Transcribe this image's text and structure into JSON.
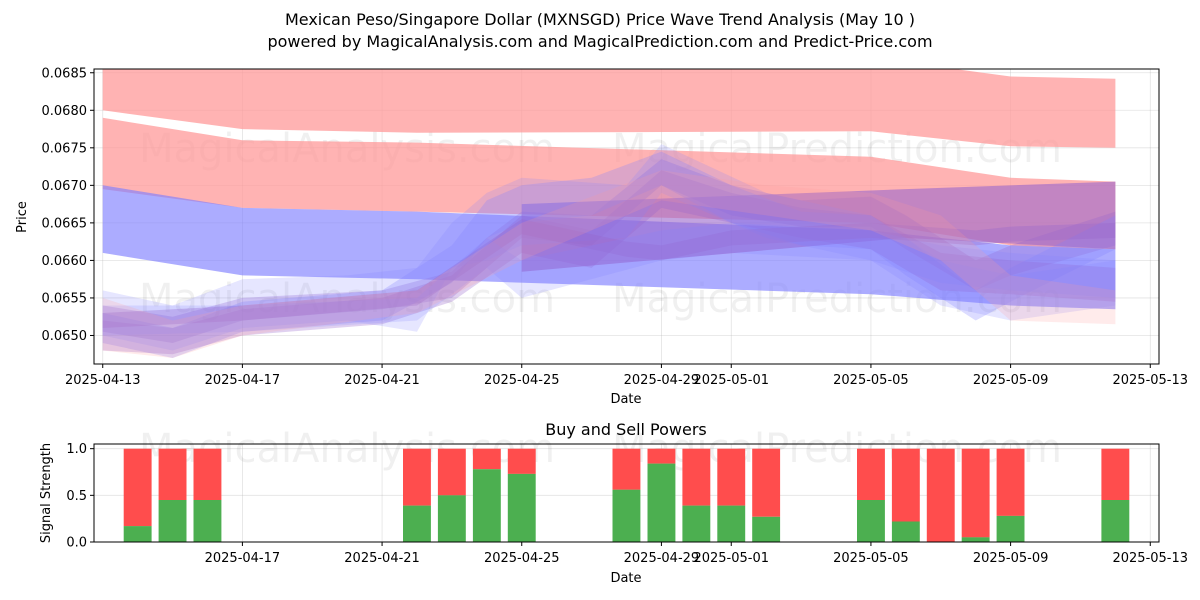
{
  "title_line1": "Mexican Peso/Singapore Dollar (MXNSGD) Price Wave Trend Analysis (May 10 )",
  "title_line2": "powered by MagicalAnalysis.com and MagicalPrediction.com and Predict-Price.com",
  "watermarks": [
    "MagicalAnalysis.com",
    "MagicalPrediction.com"
  ],
  "colors": {
    "sell": "#ff4d4d",
    "buy": "#4caf50",
    "red_band": "#ff9999",
    "blue_band": "#8080ff",
    "purple_band": "#9966cc"
  },
  "chart_data": [
    {
      "type": "area",
      "title": "",
      "xlabel": "Date",
      "ylabel": "Price",
      "xlim": [
        "2025-04-12T18:00",
        "2025-05-13T06:00"
      ],
      "ylim": [
        0.06462,
        0.06855
      ],
      "x_ticks": [
        "2025-04-13",
        "2025-04-17",
        "2025-04-21",
        "2025-04-25",
        "2025-04-29",
        "2025-05-01",
        "2025-05-05",
        "2025-05-09",
        "2025-05-13"
      ],
      "y_ticks": [
        0.065,
        0.0655,
        0.066,
        0.0665,
        0.067,
        0.0675,
        0.068,
        0.0685
      ],
      "y_tick_labels": [
        "0.0650",
        "0.0655",
        "0.0660",
        "0.0665",
        "0.0670",
        "0.0675",
        "0.0680",
        "0.0685"
      ],
      "grid": true,
      "series": [
        {
          "color": "red",
          "opacity": 0.75,
          "x": [
            "2025-04-13",
            "2025-04-17",
            "2025-04-22",
            "2025-05-05",
            "2025-05-09",
            "2025-05-12"
          ],
          "upper": [
            0.0687,
            0.0686,
            0.06855,
            0.0687,
            0.06845,
            0.06842
          ],
          "lower": [
            0.068,
            0.06775,
            0.0677,
            0.06772,
            0.06752,
            0.0675
          ]
        },
        {
          "color": "red",
          "opacity": 0.75,
          "x": [
            "2025-04-13",
            "2025-04-17",
            "2025-04-22",
            "2025-05-05",
            "2025-05-09",
            "2025-05-12"
          ],
          "upper": [
            0.0679,
            0.0676,
            0.06757,
            0.06738,
            0.0671,
            0.06705
          ],
          "lower": [
            0.06695,
            0.0667,
            0.06665,
            0.0665,
            0.0662,
            0.06615
          ]
        },
        {
          "color": "blue",
          "opacity": 0.65,
          "x": [
            "2025-04-13",
            "2025-04-17",
            "2025-04-22",
            "2025-05-05",
            "2025-05-09",
            "2025-05-12"
          ],
          "upper": [
            0.067,
            0.0667,
            0.06665,
            0.0664,
            0.0662,
            0.06615
          ],
          "lower": [
            0.0661,
            0.0658,
            0.06575,
            0.06555,
            0.0654,
            0.06535
          ]
        },
        {
          "color": "purple",
          "opacity": 0.6,
          "x": [
            "2025-04-25",
            "2025-05-06",
            "2025-05-12"
          ],
          "upper": [
            0.06675,
            0.06695,
            0.06705
          ],
          "lower": [
            0.06585,
            0.0663,
            0.06615
          ]
        },
        {
          "color": "purple",
          "opacity": 0.3,
          "x": [
            "2025-04-13",
            "2025-04-15",
            "2025-04-17",
            "2025-04-21",
            "2025-04-23",
            "2025-04-24",
            "2025-04-25",
            "2025-04-27",
            "2025-04-29",
            "2025-05-01",
            "2025-05-03",
            "2025-05-05",
            "2025-05-06",
            "2025-05-08",
            "2025-05-09",
            "2025-05-12"
          ],
          "upper": [
            0.0654,
            0.06525,
            0.0655,
            0.0656,
            0.06585,
            0.0663,
            0.06665,
            0.0666,
            0.06735,
            0.067,
            0.0668,
            0.06685,
            0.0666,
            0.066,
            0.0662,
            0.06665
          ],
          "lower": [
            0.06505,
            0.0649,
            0.0652,
            0.06535,
            0.0655,
            0.0659,
            0.0663,
            0.0662,
            0.067,
            0.0666,
            0.06645,
            0.06645,
            0.06615,
            0.0656,
            0.0658,
            0.0662
          ]
        },
        {
          "color": "blue",
          "opacity": 0.28,
          "x": [
            "2025-04-13",
            "2025-04-15",
            "2025-04-17",
            "2025-04-21",
            "2025-04-23",
            "2025-04-24",
            "2025-04-25",
            "2025-04-27",
            "2025-04-29",
            "2025-05-01",
            "2025-05-03",
            "2025-05-05",
            "2025-05-06",
            "2025-05-08",
            "2025-05-09",
            "2025-05-12"
          ],
          "upper": [
            0.0653,
            0.0651,
            0.06545,
            0.0656,
            0.0662,
            0.0668,
            0.067,
            0.0671,
            0.06745,
            0.067,
            0.06665,
            0.0666,
            0.0663,
            0.0656,
            0.0659,
            0.0666
          ],
          "lower": [
            0.0649,
            0.0647,
            0.06505,
            0.0652,
            0.0657,
            0.0663,
            0.0665,
            0.0666,
            0.067,
            0.0665,
            0.0662,
            0.06615,
            0.0658,
            0.0652,
            0.06545,
            0.06615
          ]
        },
        {
          "color": "purple",
          "opacity": 0.3,
          "x": [
            "2025-04-13",
            "2025-04-15",
            "2025-04-17",
            "2025-04-21",
            "2025-04-23",
            "2025-04-25",
            "2025-04-27",
            "2025-04-29",
            "2025-05-01",
            "2025-05-03",
            "2025-05-05",
            "2025-05-07",
            "2025-05-09",
            "2025-05-12"
          ],
          "upper": [
            0.0652,
            0.0651,
            0.06535,
            0.0655,
            0.0658,
            0.0666,
            0.0664,
            0.0672,
            0.0669,
            0.0667,
            0.0666,
            0.0661,
            0.066,
            0.0659
          ],
          "lower": [
            0.0648,
            0.06475,
            0.065,
            0.06515,
            0.06545,
            0.0661,
            0.0659,
            0.0667,
            0.0665,
            0.0663,
            0.06615,
            0.0656,
            0.06555,
            0.06545
          ]
        },
        {
          "color": "blue",
          "opacity": 0.2,
          "x": [
            "2025-04-13",
            "2025-04-15",
            "2025-04-17",
            "2025-04-20",
            "2025-04-22",
            "2025-04-23",
            "2025-04-24",
            "2025-04-25",
            "2025-04-28",
            "2025-04-29",
            "2025-05-02",
            "2025-05-05",
            "2025-05-07",
            "2025-05-09",
            "2025-05-12"
          ],
          "upper": [
            0.0656,
            0.0654,
            0.06575,
            0.0658,
            0.0659,
            0.0665,
            0.0669,
            0.0671,
            0.067,
            0.06755,
            0.0669,
            0.0666,
            0.066,
            0.0658,
            0.066
          ],
          "lower": [
            0.065,
            0.0648,
            0.0651,
            0.0652,
            0.06505,
            0.0659,
            0.066,
            0.0662,
            0.0663,
            0.0669,
            0.0663,
            0.066,
            0.0654,
            0.0652,
            0.0654
          ]
        },
        {
          "color": "purple",
          "opacity": 0.35,
          "x": [
            "2025-04-13",
            "2025-04-17",
            "2025-04-22",
            "2025-04-25",
            "2025-04-28",
            "2025-04-29",
            "2025-05-01",
            "2025-05-05",
            "2025-05-08",
            "2025-05-09",
            "2025-05-12"
          ],
          "upper": [
            0.0653,
            0.0654,
            0.0656,
            0.06655,
            0.06625,
            0.0662,
            0.0664,
            0.0665,
            0.0664,
            0.06645,
            0.0665
          ],
          "lower": [
            0.0651,
            0.0652,
            0.0654,
            0.06635,
            0.06605,
            0.066,
            0.0662,
            0.0663,
            0.0662,
            0.06625,
            0.0663
          ]
        },
        {
          "color": "blue",
          "opacity": 0.2,
          "x": [
            "2025-04-13",
            "2025-04-17",
            "2025-04-22",
            "2025-04-24",
            "2025-04-25",
            "2025-04-29",
            "2025-05-01",
            "2025-05-05",
            "2025-05-07",
            "2025-05-09",
            "2025-05-12"
          ],
          "upper": [
            0.0654,
            0.0654,
            0.0655,
            0.0663,
            0.066,
            0.0664,
            0.0665,
            0.0664,
            0.0662,
            0.0661,
            0.066
          ],
          "lower": [
            0.065,
            0.06505,
            0.0652,
            0.0659,
            0.0655,
            0.066,
            0.0661,
            0.066,
            0.0657,
            0.0656,
            0.0655
          ]
        },
        {
          "color": "red",
          "opacity": 0.2,
          "x": [
            "2025-04-13",
            "2025-04-15",
            "2025-04-17",
            "2025-04-22",
            "2025-04-25",
            "2025-04-29",
            "2025-05-02",
            "2025-05-05",
            "2025-05-07",
            "2025-05-09",
            "2025-05-12"
          ],
          "upper": [
            0.0655,
            0.0652,
            0.0654,
            0.0656,
            0.0665,
            0.0672,
            0.067,
            0.0669,
            0.0666,
            0.0658,
            0.0656
          ],
          "lower": [
            0.0648,
            0.0647,
            0.065,
            0.0653,
            0.066,
            0.0668,
            0.0666,
            0.0664,
            0.066,
            0.0652,
            0.06515
          ]
        }
      ]
    },
    {
      "type": "bar",
      "title": "Buy and Sell Powers",
      "xlabel": "Date",
      "ylabel": "Signal Strength",
      "xlim": [
        "2025-04-12T18:00",
        "2025-05-13T06:00"
      ],
      "ylim": [
        0,
        1.05
      ],
      "x_ticks": [
        "2025-04-17",
        "2025-04-21",
        "2025-04-25",
        "2025-04-29",
        "2025-05-01",
        "2025-05-05",
        "2025-05-09",
        "2025-05-13"
      ],
      "y_ticks": [
        0,
        0.5,
        1
      ],
      "y_tick_labels": [
        "0.0",
        "0.5",
        "1.0"
      ],
      "grid": true,
      "categories": [
        "2025-04-14",
        "2025-04-15",
        "2025-04-16",
        "2025-04-22",
        "2025-04-23",
        "2025-04-24",
        "2025-04-25",
        "2025-04-28",
        "2025-04-29",
        "2025-04-30",
        "2025-05-01",
        "2025-05-02",
        "2025-05-05",
        "2025-05-06",
        "2025-05-07",
        "2025-05-08",
        "2025-05-09",
        "2025-05-12"
      ],
      "buy": [
        0.17,
        0.45,
        0.45,
        0.39,
        0.5,
        0.78,
        0.73,
        0.56,
        0.84,
        0.39,
        0.39,
        0.27,
        0.45,
        0.22,
        0.0,
        0.05,
        0.28,
        0.45
      ],
      "total": [
        1,
        1,
        1,
        1,
        1,
        1,
        1,
        1,
        1,
        1,
        1,
        1,
        1,
        1,
        1,
        1,
        1,
        1
      ]
    }
  ]
}
